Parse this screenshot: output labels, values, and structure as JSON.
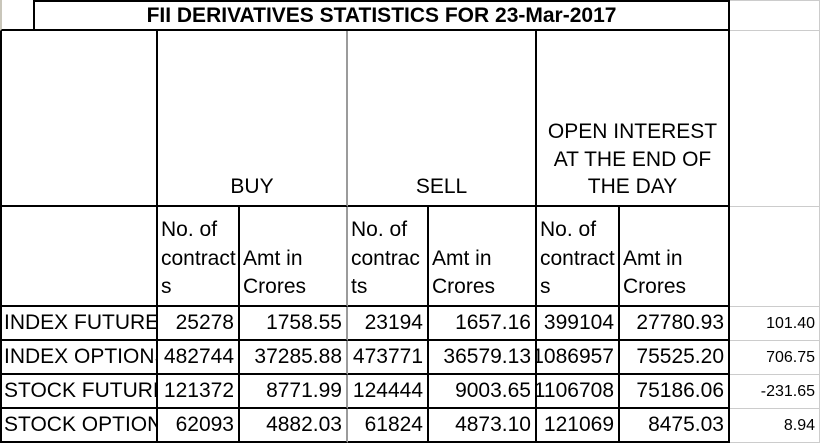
{
  "title": "FII DERIVATIVES STATISTICS FOR 23-Mar-2017",
  "table": {
    "groups": {
      "buy": "BUY",
      "sell": "SELL",
      "open_interest": "OPEN INTEREST AT THE END OF THE DAY"
    },
    "subheaders": {
      "contracts": "No. of contracts",
      "amount": "Amt in Crores"
    },
    "rows": [
      {
        "label": "INDEX FUTURES",
        "buy_contracts": "25278",
        "buy_amt": "1758.55",
        "sell_contracts": "23194",
        "sell_amt": "1657.16",
        "oi_contracts": "399104",
        "oi_amt": "27780.93",
        "net": "101.40"
      },
      {
        "label": "INDEX OPTIONS",
        "buy_contracts": "482744",
        "buy_amt": "37285.88",
        "sell_contracts": "473771",
        "sell_amt": "36579.13",
        "oi_contracts": "1086957",
        "oi_amt": "75525.20",
        "net": "706.75"
      },
      {
        "label": "STOCK FUTURES",
        "buy_contracts": "121372",
        "buy_amt": "8771.99",
        "sell_contracts": "124444",
        "sell_amt": "9003.65",
        "oi_contracts": "1106708",
        "oi_amt": "75186.06",
        "net": "-231.65"
      },
      {
        "label": "STOCK OPTIONS",
        "buy_contracts": "62093",
        "buy_amt": "4882.03",
        "sell_contracts": "61824",
        "sell_amt": "4873.10",
        "oi_contracts": "121069",
        "oi_amt": "8475.03",
        "net": "8.94"
      }
    ]
  },
  "colors": {
    "border_black": "#000000",
    "missing_border_gridline": "#9b9b9b",
    "outside_gridline": "#cccccc",
    "background": "#ffffff",
    "text": "#000000"
  }
}
